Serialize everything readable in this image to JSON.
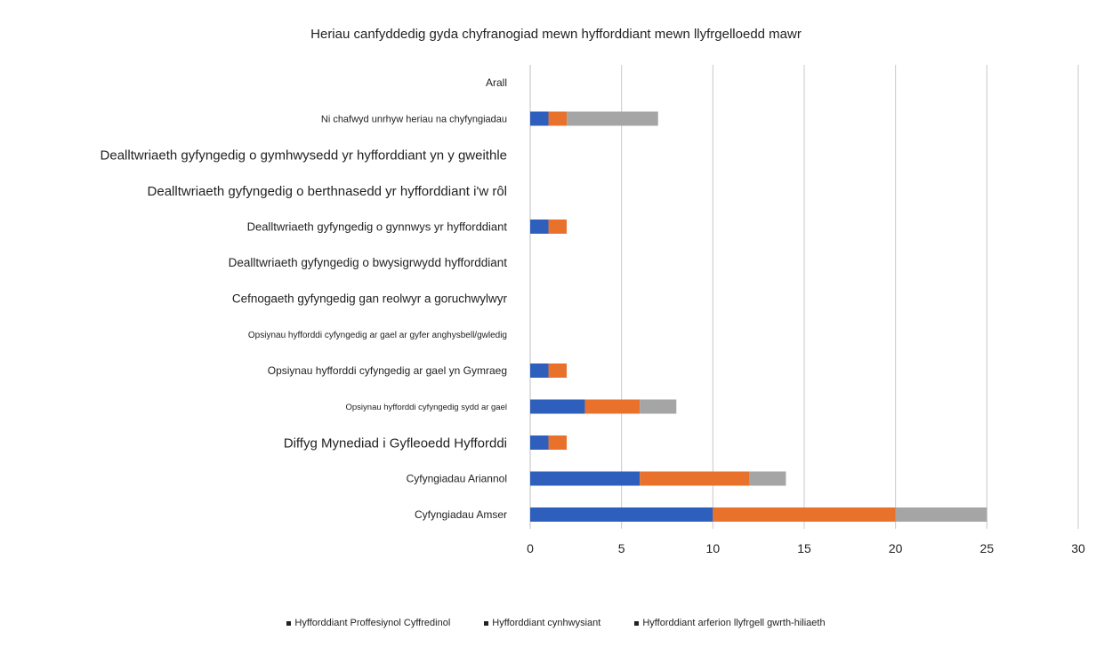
{
  "chart_data": {
    "type": "bar",
    "orientation": "horizontal",
    "stacked": true,
    "title": "Heriau canfyddedig gyda chyfranogiad mewn hyfforddiant mewn llyfrgelloedd mawr",
    "categories": [
      "Arall",
      "Ni chafwyd unrhyw heriau na chyfyngiadau",
      "Dealltwriaeth gyfyngedig o gymhwysedd yr hyfforddiant yn y gweithle",
      "Dealltwriaeth gyfyngedig o berthnasedd yr hyfforddiant i'w rôl",
      "Dealltwriaeth gyfyngedig o gynnwys yr hyfforddiant",
      "Dealltwriaeth gyfyngedig o bwysigrwydd hyfforddiant",
      "Cefnogaeth gyfyngedig gan reolwyr a goruchwylwyr",
      "Opsiynau hyfforddi cyfyngedig ar gael ar gyfer anghysbell/gwledig",
      "Opsiynau hyfforddi cyfyngedig ar gael yn Gymraeg",
      "Opsiynau hyfforddi cyfyngedig sydd ar gael",
      "Diffyg Mynediad i Gyfleoedd Hyfforddi",
      "Cyfyngiadau Ariannol",
      "Cyfyngiadau Amser"
    ],
    "category_font_sizes": [
      12,
      11,
      15,
      15,
      13,
      13.5,
      13.5,
      10,
      12,
      9.5,
      15,
      12,
      12
    ],
    "series": [
      {
        "name": "Hyfforddiant Proffesiynol Cyffredinol",
        "color": "#2f5fbd",
        "values": [
          0,
          1,
          0,
          0,
          1,
          0,
          0,
          0,
          1,
          3,
          1,
          6,
          10
        ]
      },
      {
        "name": "Hyfforddiant cynhwysiant",
        "color": "#e8722c",
        "values": [
          0,
          1,
          0,
          0,
          1,
          0,
          0,
          0,
          1,
          3,
          1,
          6,
          10
        ]
      },
      {
        "name": "Hyfforddiant arferion llyfrgell gwrth-hiliaeth",
        "color": "#a5a5a5",
        "values": [
          0,
          5,
          0,
          0,
          0,
          0,
          0,
          0,
          0,
          2,
          0,
          2,
          5
        ]
      }
    ],
    "xlim": [
      0,
      30
    ],
    "xticks": [
      "0",
      "5",
      "10",
      "15",
      "20",
      "25",
      "30"
    ],
    "grid": true,
    "legend_position": "bottom"
  }
}
